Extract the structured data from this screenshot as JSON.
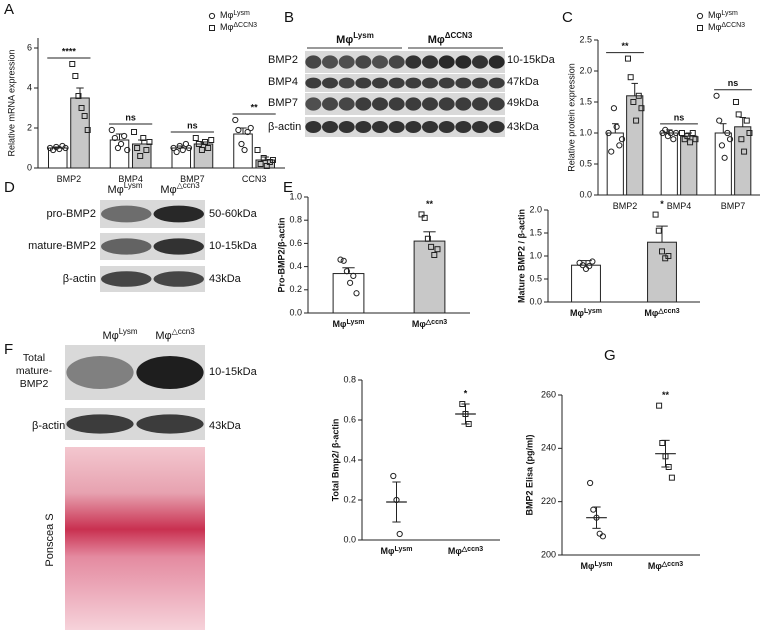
{
  "panels": [
    "A",
    "B",
    "C",
    "D",
    "E",
    "F",
    "G"
  ],
  "blot_b": {
    "groups": [
      {
        "name": "Mφ",
        "sup": "Lysm"
      },
      {
        "name": "Mφ",
        "sup": "ΔCCN3"
      }
    ],
    "rows": [
      "BMP2",
      "BMP4",
      "BMP7",
      "β-actin"
    ],
    "sizes": [
      "10-15kDa",
      "47kDa",
      "49kDa",
      "43kDa"
    ]
  },
  "blot_d": {
    "groups": [
      {
        "name": "Mφ",
        "sup": "Lysm"
      },
      {
        "name": "Mφ",
        "sup": "△ccn3"
      }
    ],
    "rows": [
      "pro-BMP2",
      "mature-BMP2",
      "β-actin"
    ],
    "sizes": [
      "50-60kDa",
      "10-15kDa",
      "43kDa"
    ]
  },
  "blot_f": {
    "groups": [
      {
        "name": "Mφ",
        "sup": "Lysm"
      },
      {
        "name": "Mφ",
        "sup": "△ccn3"
      }
    ],
    "rows": [
      "Total mature-BMP2",
      "β-actin"
    ],
    "sizes": [
      "10-15kDa",
      "43kDa"
    ],
    "stain": "Ponscea S"
  },
  "chart_data": [
    {
      "type": "bar",
      "ylabel": "Relative mRNA expression",
      "categories": [
        "BMP2",
        "BMP4",
        "BMP7",
        "CCN3"
      ],
      "ylim": [
        0,
        6.5
      ],
      "yticks": [
        0,
        2,
        4,
        6
      ],
      "series": [
        {
          "name": "Mφ",
          "superscript": "Lysm",
          "color": "#ffffff",
          "values": [
            1.0,
            1.4,
            1.0,
            1.7
          ],
          "errors": [
            0.05,
            0.3,
            0.1,
            0.3
          ],
          "points": [
            [
              1.0,
              0.9,
              1.05,
              0.95,
              1.1,
              1.0
            ],
            [
              1.9,
              1.5,
              1.0,
              1.2,
              1.6,
              0.9
            ],
            [
              1.0,
              0.8,
              1.1,
              0.9,
              1.2,
              1.0
            ],
            [
              2.4,
              1.9,
              1.2,
              0.9,
              1.8,
              2.0
            ]
          ]
        },
        {
          "name": "Mφ",
          "superscript": "ΔCCN3",
          "color": "#c8c8c8",
          "values": [
            3.5,
            1.2,
            1.2,
            0.4
          ],
          "errors": [
            0.5,
            0.2,
            0.1,
            0.15
          ],
          "points": [
            [
              5.2,
              4.6,
              3.6,
              3.0,
              2.6,
              1.9
            ],
            [
              1.8,
              1.0,
              0.6,
              1.5,
              0.9,
              1.3
            ],
            [
              1.5,
              1.2,
              0.9,
              1.3,
              1.0,
              1.4
            ],
            [
              0.9,
              0.2,
              0.5,
              0.1,
              0.3,
              0.4
            ]
          ]
        }
      ],
      "annotations": [
        "****",
        "ns",
        "ns",
        "**"
      ]
    },
    {
      "type": "bar",
      "ylabel": "Relative protein expression",
      "categories": [
        "BMP2",
        "BMP4",
        "BMP7"
      ],
      "ylim": [
        0,
        2.5
      ],
      "yticks": [
        {
          "value": 0,
          "label": "0.0"
        },
        {
          "value": 0.5,
          "label": "0.5"
        },
        {
          "value": 1,
          "label": "1.0"
        },
        {
          "value": 1.5,
          "label": "1.5"
        },
        {
          "value": 2,
          "label": "2.0"
        },
        {
          "value": 2.5,
          "label": "2.5"
        }
      ],
      "series": [
        {
          "name": "Mφ",
          "superscript": "Lysm",
          "color": "#ffffff",
          "values": [
            1.0,
            1.0,
            1.0
          ],
          "errors": [
            0.15,
            0.05,
            0.15
          ],
          "points": [
            [
              1.0,
              0.7,
              1.4,
              1.1,
              0.8,
              0.9
            ],
            [
              1.0,
              1.05,
              0.95,
              1.0,
              0.9,
              1.0
            ],
            [
              1.6,
              1.2,
              0.8,
              0.6,
              1.0,
              0.9
            ]
          ]
        },
        {
          "name": "Mφ",
          "superscript": "ΔCCN3",
          "color": "#c8c8c8",
          "values": [
            1.6,
            0.95,
            1.1
          ],
          "errors": [
            0.2,
            0.05,
            0.15
          ],
          "points": [
            [
              2.2,
              1.9,
              1.5,
              1.2,
              1.6,
              1.4
            ],
            [
              1.0,
              0.9,
              0.95,
              0.85,
              1.0,
              0.9
            ],
            [
              1.5,
              1.3,
              0.9,
              0.7,
              1.2,
              1.0
            ]
          ]
        }
      ],
      "annotations": [
        "**",
        "ns",
        "ns"
      ]
    },
    {
      "type": "bar",
      "ylabel": "Pro-BMP2/β-actin",
      "categories": [
        "Mφ",
        "Mφ"
      ],
      "category_superscripts": [
        "Lysm",
        "△ccn3"
      ],
      "colors": [
        "#ffffff",
        "#c8c8c8"
      ],
      "values": [
        0.34,
        0.62
      ],
      "errors": [
        0.05,
        0.08
      ],
      "points": [
        [
          0.46,
          0.45,
          0.36,
          0.26,
          0.32,
          0.17
        ],
        [
          0.85,
          0.82,
          0.64,
          0.57,
          0.5,
          0.55
        ]
      ],
      "ylim": [
        0,
        1.0
      ],
      "yticks": [
        {
          "value": 0,
          "label": "0.0"
        },
        {
          "value": 0.2,
          "label": "0.2"
        },
        {
          "value": 0.4,
          "label": "0.4"
        },
        {
          "value": 0.6,
          "label": "0.6"
        },
        {
          "value": 0.8,
          "label": "0.8"
        },
        {
          "value": 1,
          "label": "1.0"
        }
      ],
      "annotations": [
        null,
        "**"
      ]
    },
    {
      "type": "bar",
      "ylabel": "Mature BMP2 / β-actin",
      "categories": [
        "Mφ",
        "Mφ"
      ],
      "category_superscripts": [
        "Lysm",
        "△ccn3"
      ],
      "colors": [
        "#ffffff",
        "#c8c8c8"
      ],
      "values": [
        0.8,
        1.3
      ],
      "errors": [
        0.1,
        0.35
      ],
      "points": [
        [
          0.85,
          0.8,
          0.72,
          0.78,
          0.88
        ],
        [
          1.9,
          1.55,
          1.1,
          0.95,
          1.0
        ]
      ],
      "ylim": [
        0,
        2.0
      ],
      "yticks": [
        {
          "value": 0,
          "label": "0.0"
        },
        {
          "value": 0.5,
          "label": "0.5"
        },
        {
          "value": 1,
          "label": "1.0"
        },
        {
          "value": 1.5,
          "label": "1.5"
        },
        {
          "value": 2,
          "label": "2.0"
        }
      ],
      "annotations": [
        null,
        "*"
      ]
    },
    {
      "type": "scatter",
      "ylabel": "Total Bmp2/ β-actin",
      "categories": [
        "Mφ",
        "Mφ"
      ],
      "category_superscripts": [
        "Lysm",
        "△ccn3"
      ],
      "values": [
        0.19,
        0.63
      ],
      "errors": [
        0.1,
        0.05
      ],
      "points": [
        [
          0.32,
          0.2,
          0.03
        ],
        [
          0.68,
          0.63,
          0.58
        ]
      ],
      "ylim": [
        0,
        0.8
      ],
      "yticks": [
        {
          "value": 0,
          "label": "0.0"
        },
        {
          "value": 0.2,
          "label": "0.2"
        },
        {
          "value": 0.4,
          "label": "0.4"
        },
        {
          "value": 0.6,
          "label": "0.6"
        },
        {
          "value": 0.8,
          "label": "0.8"
        }
      ],
      "annotations": [
        null,
        "*"
      ]
    },
    {
      "type": "scatter",
      "ylabel": "BMP2 Elisa (pg/ml)",
      "categories": [
        "Mφ",
        "Mφ"
      ],
      "category_superscripts": [
        "Lysm",
        "△ccn3"
      ],
      "values": [
        214,
        238
      ],
      "errors": [
        4,
        5
      ],
      "points": [
        [
          227,
          217,
          214,
          208,
          207
        ],
        [
          256,
          242,
          237,
          233,
          229
        ]
      ],
      "ylim": [
        200,
        260
      ],
      "yticks": [
        200,
        220,
        240,
        260
      ],
      "annotations": [
        null,
        "**"
      ]
    }
  ]
}
